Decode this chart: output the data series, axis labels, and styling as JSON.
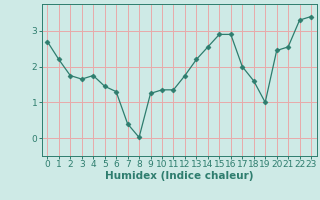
{
  "title": "",
  "xlabel": "Humidex (Indice chaleur)",
  "ylabel": "",
  "x_values": [
    0,
    1,
    2,
    3,
    4,
    5,
    6,
    7,
    8,
    9,
    10,
    11,
    12,
    13,
    14,
    15,
    16,
    17,
    18,
    19,
    20,
    21,
    22,
    23
  ],
  "y_values": [
    2.7,
    2.2,
    1.75,
    1.65,
    1.75,
    1.45,
    1.3,
    0.4,
    0.02,
    1.25,
    1.35,
    1.35,
    1.75,
    2.2,
    2.55,
    2.9,
    2.9,
    2.0,
    1.6,
    1.0,
    2.45,
    2.55,
    3.3,
    3.4
  ],
  "line_color": "#2e7d6e",
  "marker": "D",
  "marker_size": 2.5,
  "bg_color": "#ceeae6",
  "grid_color": "#e8aaaa",
  "axis_color": "#2e7d6e",
  "ylim": [
    -0.5,
    3.75
  ],
  "xlim": [
    -0.5,
    23.5
  ],
  "yticks": [
    0,
    1,
    2,
    3
  ],
  "xticks": [
    0,
    1,
    2,
    3,
    4,
    5,
    6,
    7,
    8,
    9,
    10,
    11,
    12,
    13,
    14,
    15,
    16,
    17,
    18,
    19,
    20,
    21,
    22,
    23
  ],
  "label_fontsize": 7.5,
  "tick_fontsize": 6.5
}
